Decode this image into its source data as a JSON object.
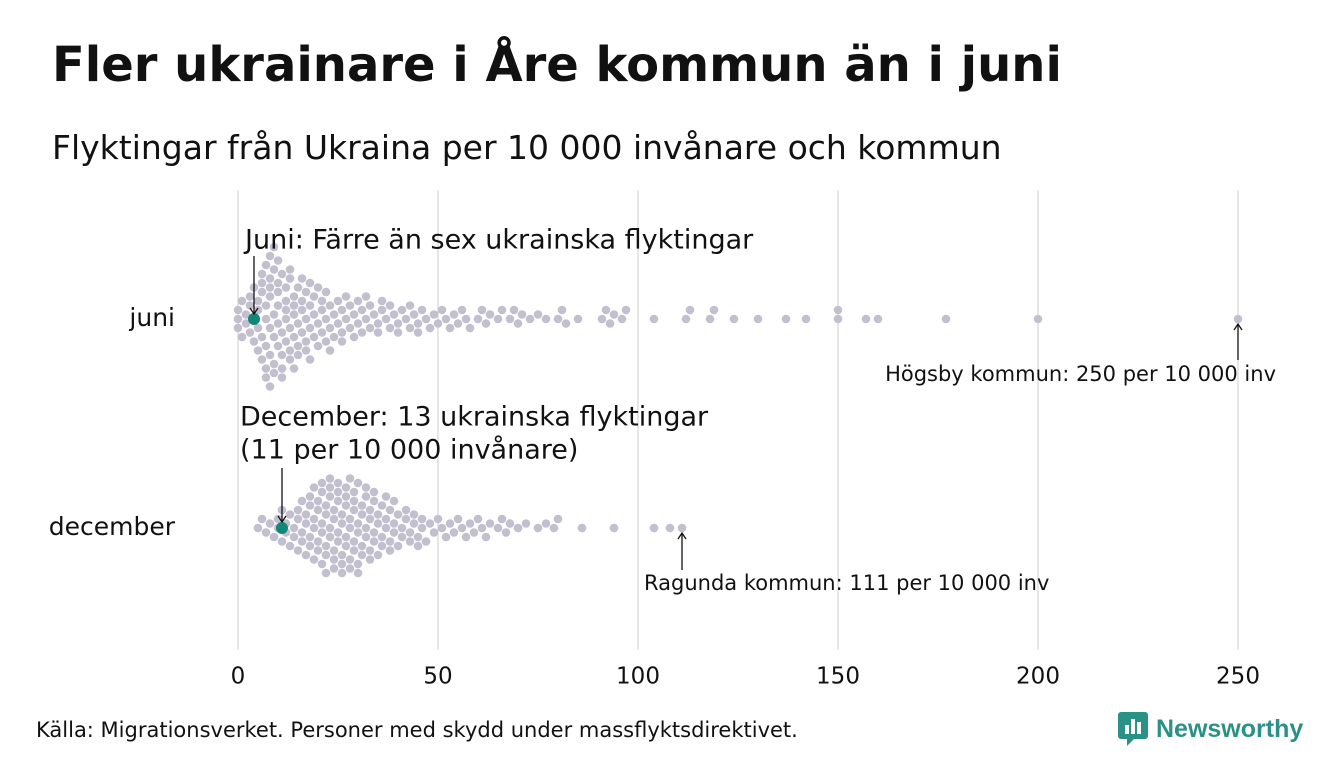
{
  "title": "Fler ukrainare i Åre kommun än i juni",
  "subtitle": "Flyktingar från Ukraina per 10 000 invånare och kommun",
  "source": "Källa: Migrationsverket. Personer med skydd under massflyktsdirektivet.",
  "brand": {
    "name": "Newsworthy",
    "color": "#2a9186"
  },
  "colors": {
    "dot": "#c2bfcf",
    "highlight": "#11877a",
    "grid": "#cccccc",
    "text": "#111111"
  },
  "chart_data": {
    "type": "scatter",
    "variant": "beeswarm",
    "x_axis": {
      "ticks": [
        0,
        50,
        100,
        150,
        200,
        250
      ],
      "tick_labels": [
        "0",
        "50",
        "100",
        "150",
        "200",
        "250"
      ],
      "range": [
        0,
        260
      ]
    },
    "grid": true,
    "series": [
      {
        "name": "juni",
        "highlight_value": 4,
        "values": [
          0,
          0,
          0,
          1,
          1,
          2,
          2,
          3,
          3,
          3,
          4,
          4,
          4,
          5,
          5,
          5,
          5,
          6,
          6,
          6,
          6,
          6,
          7,
          7,
          7,
          7,
          7,
          7,
          8,
          8,
          8,
          8,
          8,
          8,
          8,
          9,
          9,
          9,
          9,
          9,
          9,
          10,
          10,
          10,
          10,
          10,
          10,
          11,
          11,
          11,
          11,
          11,
          12,
          12,
          12,
          12,
          12,
          13,
          13,
          13,
          13,
          13,
          14,
          14,
          14,
          14,
          14,
          15,
          15,
          15,
          15,
          16,
          16,
          16,
          16,
          17,
          17,
          17,
          17,
          18,
          18,
          18,
          18,
          19,
          19,
          19,
          20,
          20,
          20,
          21,
          21,
          21,
          22,
          22,
          22,
          23,
          23,
          23,
          24,
          24,
          25,
          25,
          26,
          26,
          26,
          27,
          27,
          28,
          28,
          29,
          29,
          30,
          30,
          31,
          31,
          32,
          32,
          33,
          33,
          34,
          35,
          35,
          36,
          36,
          37,
          38,
          38,
          39,
          40,
          40,
          41,
          42,
          43,
          43,
          44,
          45,
          45,
          46,
          47,
          48,
          49,
          50,
          51,
          52,
          53,
          54,
          55,
          56,
          57,
          58,
          60,
          61,
          62,
          63,
          65,
          66,
          68,
          69,
          70,
          71,
          73,
          75,
          77,
          80,
          81,
          82,
          85,
          91,
          92,
          93,
          94,
          96,
          97,
          104,
          112,
          113,
          118,
          119,
          124,
          130,
          137,
          142,
          150,
          150,
          157,
          160,
          177,
          200,
          250
        ],
        "annotations": [
          {
            "label": "Juni: Färre än sex ukrainska flyktingar",
            "x": 4
          },
          {
            "label": "Högsby kommun: 250 per 10 000 inv",
            "x": 250
          }
        ]
      },
      {
        "name": "december",
        "highlight_value": 11,
        "values": [
          5,
          6,
          7,
          8,
          9,
          10,
          10,
          11,
          11,
          12,
          12,
          13,
          13,
          14,
          14,
          15,
          15,
          15,
          16,
          16,
          16,
          17,
          17,
          17,
          18,
          18,
          18,
          18,
          19,
          19,
          19,
          19,
          20,
          20,
          20,
          20,
          21,
          21,
          21,
          21,
          21,
          22,
          22,
          22,
          22,
          22,
          23,
          23,
          23,
          23,
          23,
          24,
          24,
          24,
          24,
          24,
          25,
          25,
          25,
          25,
          25,
          26,
          26,
          26,
          26,
          26,
          27,
          27,
          27,
          27,
          27,
          28,
          28,
          28,
          28,
          28,
          29,
          29,
          29,
          29,
          29,
          30,
          30,
          30,
          30,
          30,
          31,
          31,
          31,
          31,
          32,
          32,
          32,
          32,
          33,
          33,
          33,
          33,
          34,
          34,
          34,
          34,
          35,
          35,
          35,
          36,
          36,
          36,
          37,
          37,
          37,
          38,
          38,
          38,
          39,
          39,
          39,
          40,
          40,
          41,
          41,
          42,
          42,
          43,
          43,
          44,
          44,
          45,
          45,
          46,
          46,
          47,
          48,
          49,
          50,
          51,
          52,
          53,
          54,
          55,
          56,
          57,
          58,
          59,
          60,
          61,
          62,
          63,
          65,
          66,
          67,
          68,
          70,
          72,
          75,
          77,
          79,
          80,
          86,
          94,
          104,
          108,
          111
        ],
        "annotations": [
          {
            "label": [
              "December: 13 ukrainska flyktingar",
              "(11 per 10 000 invånare)"
            ],
            "x": 11
          },
          {
            "label": "Ragunda kommun: 111 per 10 000 inv",
            "x": 111
          }
        ]
      }
    ]
  }
}
